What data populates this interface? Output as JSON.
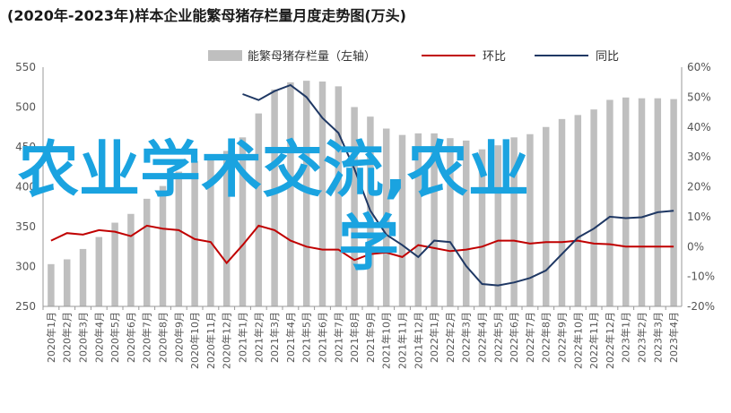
{
  "chart_data": {
    "type": "bar+line",
    "title": "(2020年-2023年)样本企业能繁母猪存栏量月度走势图(万头)",
    "categories": [
      "2020年1月",
      "2020年2月",
      "2020年3月",
      "2020年4月",
      "2020年5月",
      "2020年6月",
      "2020年7月",
      "2020年8月",
      "2020年9月",
      "2020年10月",
      "2020年11月",
      "2020年12月",
      "2021年1月",
      "2021年2月",
      "2021年3月",
      "2021年4月",
      "2021年5月",
      "2021年6月",
      "2021年7月",
      "2021年8月",
      "2021年9月",
      "2021年10月",
      "2021年11月",
      "2021年12月",
      "2022年1月",
      "2022年2月",
      "2022年3月",
      "2022年4月",
      "2022年5月",
      "2022年6月",
      "2022年7月",
      "2022年8月",
      "2022年9月",
      "2022年10月",
      "2022年11月",
      "2022年12月",
      "2023年1月",
      "2023年2月",
      "2023年3月",
      "2023年4月"
    ],
    "series": [
      {
        "name": "能繁母猪存栏量（左轴）",
        "type": "bar",
        "axis": "left",
        "values": [
          303,
          309,
          322,
          337,
          355,
          366,
          385,
          401,
          419,
          432,
          440,
          445,
          462,
          492,
          522,
          531,
          533,
          532,
          526,
          500,
          488,
          473,
          465,
          467,
          467,
          461,
          458,
          447,
          452,
          462,
          466,
          475,
          485,
          490,
          497,
          509,
          512,
          511,
          511,
          510
        ]
      },
      {
        "name": "环比",
        "type": "line",
        "axis": "right",
        "color": "#c00000",
        "values": [
          2.0,
          4.5,
          4.0,
          5.5,
          5.0,
          3.5,
          7.0,
          6.0,
          5.5,
          2.5,
          1.5,
          -5.5,
          0.5,
          7.0,
          5.5,
          2.0,
          0.0,
          -1.0,
          -1.0,
          -4.5,
          -2.5,
          -2.0,
          -3.5,
          0.5,
          -0.5,
          -1.5,
          -1.0,
          0.0,
          2.0,
          2.0,
          1.0,
          1.5,
          1.5,
          2.0,
          1.0,
          0.8,
          0.0,
          0.0,
          0.0,
          0.0
        ]
      },
      {
        "name": "同比",
        "type": "line",
        "axis": "right",
        "color": "#1f3864",
        "values": [
          null,
          null,
          null,
          null,
          null,
          null,
          null,
          null,
          null,
          null,
          null,
          null,
          51.0,
          49.0,
          52.0,
          54.0,
          50.0,
          43.0,
          38.0,
          26.0,
          12.0,
          4.0,
          0.5,
          -3.5,
          2.0,
          1.5,
          -6.5,
          -12.5,
          -13.0,
          -12.0,
          -10.5,
          -8.0,
          -2.5,
          3.0,
          6.0,
          10.0,
          9.5,
          9.8,
          11.5,
          12.0
        ]
      }
    ],
    "y_left": {
      "min": 250,
      "max": 550,
      "ticks": [
        250,
        300,
        350,
        400,
        450,
        500,
        550
      ]
    },
    "y_right": {
      "min": -20,
      "max": 60,
      "ticks": [
        "-20%",
        "-10%",
        "0%",
        "10%",
        "20%",
        "30%",
        "40%",
        "50%",
        "60%"
      ]
    },
    "legend_position": "top",
    "grid": false
  },
  "overlay": {
    "line1": "农业学术交流,农业",
    "line2": "学"
  }
}
